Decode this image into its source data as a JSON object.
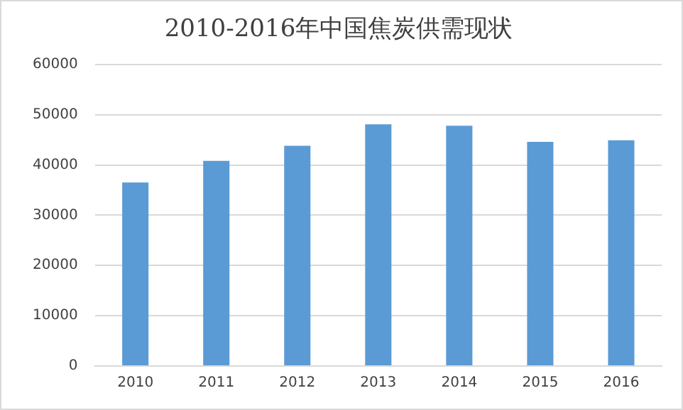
{
  "chart_data": {
    "type": "bar",
    "title": "2010-2016年中国焦炭供需现状",
    "categories": [
      "2010",
      "2011",
      "2012",
      "2013",
      "2014",
      "2015",
      "2016"
    ],
    "values": [
      36500,
      40800,
      43800,
      48100,
      47800,
      44600,
      44900
    ],
    "color": "#5b9bd5",
    "ylim": [
      0,
      60000
    ],
    "yticks": [
      0,
      10000,
      20000,
      30000,
      40000,
      50000,
      60000
    ],
    "grid": "y"
  }
}
